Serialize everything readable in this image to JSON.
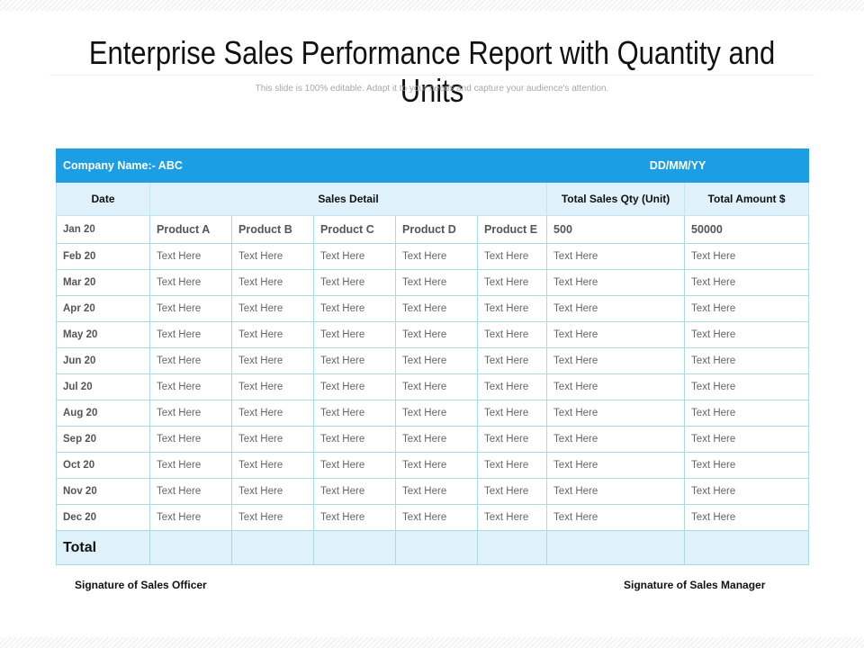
{
  "title": "Enterprise Sales Performance Report with Quantity and Units",
  "subtitle": "This slide is 100% editable. Adapt it to your needs and capture your audience's attention.",
  "colors": {
    "header_blue": "#1c9ee4",
    "light_blue": "#dff1fb",
    "grid_line": "#a9dbe3"
  },
  "table": {
    "company_label": "Company Name:- ABC",
    "date_format": "DD/MM/YY",
    "headers": {
      "date": "Date",
      "sales_detail": "Sales Detail",
      "total_qty": "Total Sales Qty (Unit)",
      "total_amount": "Total Amount $"
    },
    "first_row": {
      "month": "Jan 20",
      "products": [
        "Product A",
        "Product B",
        "Product C",
        "Product D",
        "Product E"
      ],
      "qty": "500",
      "amount": "50000"
    },
    "rows": [
      {
        "month": "Feb 20",
        "cells": [
          "Text Here",
          "Text Here",
          "Text Here",
          "Text Here",
          "Text Here",
          "Text Here",
          "Text Here"
        ]
      },
      {
        "month": "Mar 20",
        "cells": [
          "Text Here",
          "Text Here",
          "Text Here",
          "Text Here",
          "Text Here",
          "Text Here",
          "Text Here"
        ]
      },
      {
        "month": "Apr 20",
        "cells": [
          "Text Here",
          "Text Here",
          "Text Here",
          "Text Here",
          "Text Here",
          "Text Here",
          "Text Here"
        ]
      },
      {
        "month": "May 20",
        "cells": [
          "Text Here",
          "Text Here",
          "Text Here",
          "Text Here",
          "Text Here",
          "Text Here",
          "Text Here"
        ]
      },
      {
        "month": "Jun 20",
        "cells": [
          "Text Here",
          "Text Here",
          "Text Here",
          "Text Here",
          "Text Here",
          "Text Here",
          "Text Here"
        ]
      },
      {
        "month": "Jul 20",
        "cells": [
          "Text Here",
          "Text Here",
          "Text Here",
          "Text Here",
          "Text Here",
          "Text Here",
          "Text Here"
        ]
      },
      {
        "month": "Aug 20",
        "cells": [
          "Text Here",
          "Text Here",
          "Text Here",
          "Text Here",
          "Text Here",
          "Text Here",
          "Text Here"
        ]
      },
      {
        "month": "Sep 20",
        "cells": [
          "Text Here",
          "Text Here",
          "Text Here",
          "Text Here",
          "Text Here",
          "Text Here",
          "Text Here"
        ]
      },
      {
        "month": "Oct 20",
        "cells": [
          "Text Here",
          "Text Here",
          "Text Here",
          "Text Here",
          "Text Here",
          "Text Here",
          "Text Here"
        ]
      },
      {
        "month": "Nov 20",
        "cells": [
          "Text Here",
          "Text Here",
          "Text Here",
          "Text Here",
          "Text Here",
          "Text Here",
          "Text Here"
        ]
      },
      {
        "month": "Dec 20",
        "cells": [
          "Text Here",
          "Text Here",
          "Text Here",
          "Text Here",
          "Text Here",
          "Text Here",
          "Text Here"
        ]
      }
    ],
    "total_label": "Total"
  },
  "signatures": {
    "officer": "Signature of Sales Officer",
    "manager": "Signature of Sales Manager"
  }
}
